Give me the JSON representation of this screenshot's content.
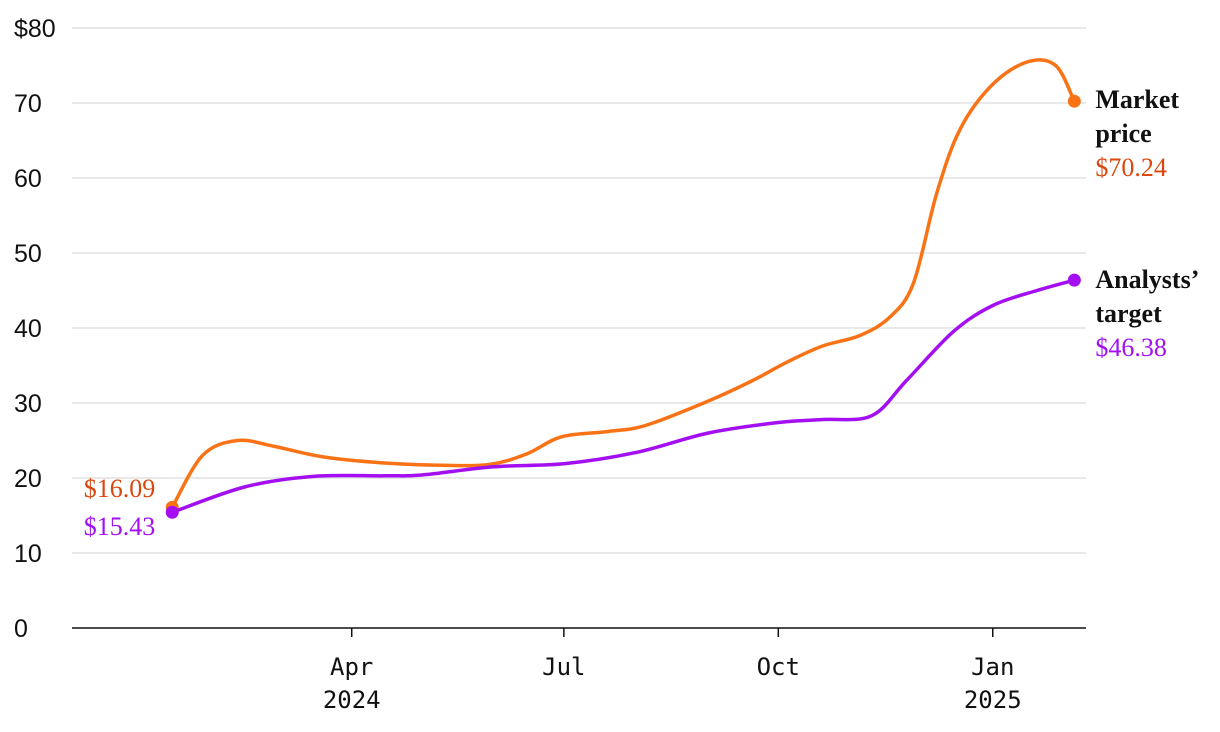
{
  "chart_data": {
    "type": "line",
    "y_ticks": [
      {
        "value": 0,
        "label": "0"
      },
      {
        "value": 10,
        "label": "10"
      },
      {
        "value": 20,
        "label": "20"
      },
      {
        "value": 30,
        "label": "30"
      },
      {
        "value": 40,
        "label": "40"
      },
      {
        "value": 50,
        "label": "50"
      },
      {
        "value": 60,
        "label": "60"
      },
      {
        "value": 70,
        "label": "70"
      },
      {
        "value": 80,
        "label": "$80"
      }
    ],
    "ylim": [
      0,
      80
    ],
    "xlim": [
      "2023-12-03",
      "2025-02-10"
    ],
    "x_ticks": [
      {
        "date": "2024-04-01",
        "line1": "Apr",
        "line2": "2024"
      },
      {
        "date": "2024-07-01",
        "line1": "Jul",
        "line2": ""
      },
      {
        "date": "2024-10-01",
        "line1": "Oct",
        "line2": ""
      },
      {
        "date": "2025-01-01",
        "line1": "Jan",
        "line2": "2025"
      }
    ],
    "grid": true,
    "series": [
      {
        "name": "Market price",
        "name_lines": [
          "Market",
          "price"
        ],
        "color": "#f97316",
        "value_color": "#d9480f",
        "start_label": "$16.09",
        "end_label": "$70.24",
        "points": [
          [
            "2024-01-15",
            16.09
          ],
          [
            "2024-01-28",
            23.0
          ],
          [
            "2024-02-12",
            25.0
          ],
          [
            "2024-02-28",
            24.2
          ],
          [
            "2024-03-20",
            22.8
          ],
          [
            "2024-04-15",
            22.0
          ],
          [
            "2024-05-10",
            21.7
          ],
          [
            "2024-05-30",
            21.8
          ],
          [
            "2024-06-15",
            23.2
          ],
          [
            "2024-06-30",
            25.5
          ],
          [
            "2024-07-20",
            26.2
          ],
          [
            "2024-08-05",
            27.0
          ],
          [
            "2024-08-30",
            30.0
          ],
          [
            "2024-09-20",
            33.0
          ],
          [
            "2024-10-05",
            35.5
          ],
          [
            "2024-10-20",
            37.6
          ],
          [
            "2024-11-05",
            39.0
          ],
          [
            "2024-11-18",
            41.5
          ],
          [
            "2024-11-28",
            46.0
          ],
          [
            "2024-12-08",
            58.0
          ],
          [
            "2024-12-18",
            66.5
          ],
          [
            "2025-01-01",
            72.5
          ],
          [
            "2025-01-16",
            75.5
          ],
          [
            "2025-01-28",
            75.0
          ],
          [
            "2025-02-05",
            70.24
          ]
        ]
      },
      {
        "name": "Analysts’ target",
        "name_lines": [
          "Analysts’",
          "target"
        ],
        "color": "#a30ff0",
        "value_color": "#a30ff0",
        "start_label": "$15.43",
        "end_label": "$46.38",
        "points": [
          [
            "2024-01-15",
            15.43
          ],
          [
            "2024-02-15",
            18.8
          ],
          [
            "2024-03-15",
            20.2
          ],
          [
            "2024-04-15",
            20.3
          ],
          [
            "2024-05-01",
            20.4
          ],
          [
            "2024-06-01",
            21.5
          ],
          [
            "2024-07-01",
            21.9
          ],
          [
            "2024-08-01",
            23.4
          ],
          [
            "2024-09-01",
            26.0
          ],
          [
            "2024-10-01",
            27.4
          ],
          [
            "2024-10-20",
            27.8
          ],
          [
            "2024-11-10",
            28.3
          ],
          [
            "2024-11-25",
            33.0
          ],
          [
            "2024-12-15",
            39.5
          ],
          [
            "2025-01-01",
            43.0
          ],
          [
            "2025-01-20",
            45.0
          ],
          [
            "2025-02-05",
            46.38
          ]
        ]
      }
    ]
  }
}
